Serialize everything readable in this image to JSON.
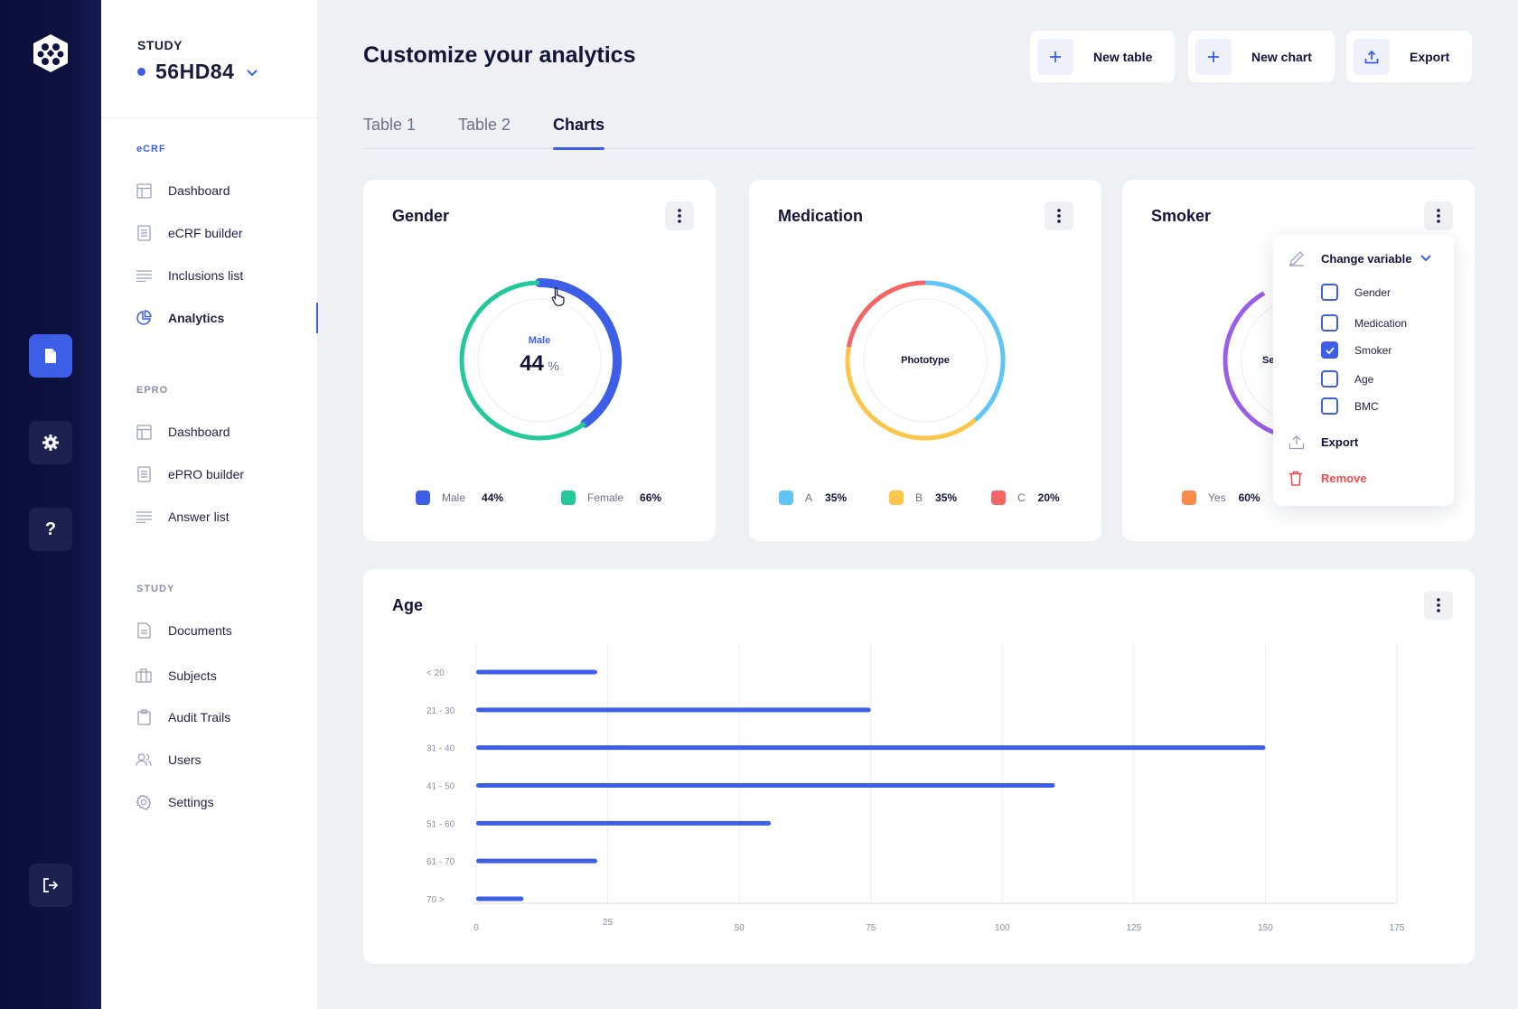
{
  "sidebar": {
    "study_label": "STUDY",
    "study_id": "56HD84",
    "sections": [
      {
        "label": "eCRF",
        "items": [
          {
            "label": "Dashboard",
            "icon": "layout-icon"
          },
          {
            "label": "eCRF builder",
            "icon": "form-icon"
          },
          {
            "label": "Inclusions list",
            "icon": "list-icon"
          },
          {
            "label": "Analytics",
            "icon": "pie-chart-icon",
            "active": true
          }
        ]
      },
      {
        "label": "EPRO",
        "items": [
          {
            "label": "Dashboard",
            "icon": "layout-icon"
          },
          {
            "label": "ePRO builder",
            "icon": "form-icon"
          },
          {
            "label": "Answer list",
            "icon": "list-icon"
          }
        ]
      },
      {
        "label": "STUDY",
        "items": [
          {
            "label": "Documents",
            "icon": "document-icon"
          },
          {
            "label": "Subjects",
            "icon": "briefcase-icon"
          },
          {
            "label": "Audit Trails",
            "icon": "clipboard-icon"
          },
          {
            "label": "Users",
            "icon": "users-icon"
          },
          {
            "label": "Settings",
            "icon": "gear-icon"
          }
        ]
      }
    ]
  },
  "header": {
    "title": "Customize your analytics",
    "buttons": {
      "new_table": "New table",
      "new_chart": "New chart",
      "export": "Export"
    },
    "tabs": [
      "Table 1",
      "Table 2",
      "Charts"
    ],
    "active_tab": "Charts"
  },
  "cards": {
    "gender": {
      "title": "Gender",
      "center_label": "Male",
      "center_value": "44",
      "center_unit": "%"
    },
    "medication": {
      "title": "Medication",
      "center_label": "Phototype"
    },
    "smoker": {
      "title": "Smoker",
      "center_label": "Se",
      "legend_label": "Yes",
      "legend_value": "60%"
    },
    "age": {
      "title": "Age"
    }
  },
  "menu": {
    "header": "Change variable",
    "options": [
      {
        "label": "Gender",
        "checked": false
      },
      {
        "label": "Medication",
        "checked": false
      },
      {
        "label": "Smoker",
        "checked": true
      },
      {
        "label": "Age",
        "checked": false
      },
      {
        "label": "BMC",
        "checked": false
      }
    ],
    "export": "Export",
    "remove": "Remove"
  },
  "colors": {
    "accent": "#3d5fe8",
    "green": "#21c99b",
    "sky": "#5ec6f6",
    "yellow": "#fcc64b",
    "red": "#f56565",
    "orange": "#fb8c4c",
    "purple": "#9b5ee8",
    "remove": "#f04b4b"
  },
  "chart_data": [
    {
      "type": "pie",
      "title": "Gender",
      "series": [
        {
          "name": "Male",
          "value": 44,
          "label": "44%",
          "color": "#3d5fe8"
        },
        {
          "name": "Female",
          "value": 66,
          "label": "66%",
          "color": "#21c99b"
        }
      ]
    },
    {
      "type": "pie",
      "title": "Medication",
      "series": [
        {
          "name": "A",
          "value": 35,
          "label": "35%",
          "color": "#5ec6f6"
        },
        {
          "name": "B",
          "value": 35,
          "label": "35%",
          "color": "#fcc64b"
        },
        {
          "name": "C",
          "value": 20,
          "label": "20%",
          "color": "#f56565"
        }
      ]
    },
    {
      "type": "pie",
      "title": "Smoker",
      "series": [
        {
          "name": "Yes",
          "value": 60,
          "label": "60%",
          "color": "#fb8c4c"
        }
      ]
    },
    {
      "type": "bar",
      "orientation": "horizontal",
      "title": "Age",
      "categories": [
        "< 20",
        "21 - 30",
        "31 - 40",
        "41 - 50",
        "51 - 60",
        "61 - 70",
        "70 >"
      ],
      "values": [
        23,
        75,
        150,
        110,
        56,
        23,
        9
      ],
      "xlim": [
        0,
        175
      ],
      "xticks": [
        0,
        25,
        50,
        75,
        100,
        125,
        150,
        175
      ],
      "grid": true
    }
  ]
}
